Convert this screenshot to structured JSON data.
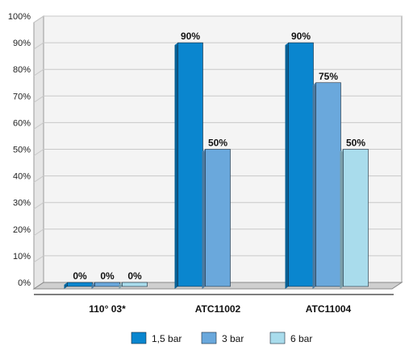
{
  "chart_data": {
    "type": "bar",
    "categories": [
      "110° 03*",
      "ATC11002",
      "ATC11004"
    ],
    "series": [
      {
        "name": "1,5 bar",
        "values": [
          0,
          90,
          90
        ],
        "labels": [
          "0%",
          "90%",
          "90%"
        ],
        "color": "#0a86cf"
      },
      {
        "name": "3 bar",
        "values": [
          0,
          50,
          75
        ],
        "labels": [
          "0%",
          "50%",
          "75%"
        ],
        "color": "#6aa8dc"
      },
      {
        "name": "6 bar",
        "values": [
          0,
          null,
          50
        ],
        "labels": [
          "0%",
          "",
          "50%"
        ],
        "color": "#a9dcec"
      }
    ],
    "yticks": [
      "0%",
      "10%",
      "20%",
      "30%",
      "40%",
      "50%",
      "60%",
      "70%",
      "80%",
      "90%",
      "100%"
    ],
    "ylim": [
      0,
      100
    ],
    "grid": true,
    "legend": "bottom"
  }
}
